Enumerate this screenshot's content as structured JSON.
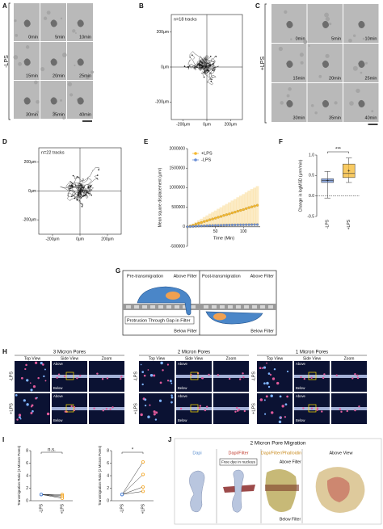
{
  "chart_data": [
    {
      "type": "tracks",
      "annotation": "n=18 tracks",
      "xlim": [
        -300,
        300
      ],
      "xticks": [
        {
          "value": -200,
          "label": "-200μm"
        },
        {
          "value": 0,
          "label": "0μm"
        },
        {
          "value": 200,
          "label": "200μm"
        }
      ],
      "ylim": [
        -300,
        300
      ],
      "yticks": [
        {
          "value": 200,
          "label": "200μm"
        },
        {
          "value": 0,
          "label": "0μm"
        },
        {
          "value": -200,
          "label": "-200μm"
        }
      ]
    },
    {
      "type": "tracks",
      "annotation": "n=22 tracks",
      "xlim": [
        -300,
        300
      ],
      "xticks": [
        {
          "value": -200,
          "label": "-200μm"
        },
        {
          "value": 0,
          "label": "0μm"
        },
        {
          "value": 200,
          "label": "200μm"
        }
      ],
      "ylim": [
        -300,
        300
      ],
      "yticks": [
        {
          "value": 200,
          "label": "200μm"
        },
        {
          "value": 0,
          "label": "0μm"
        },
        {
          "value": -200,
          "label": "-200μm"
        }
      ]
    },
    {
      "type": "line",
      "xlabel": "Time (Min)",
      "ylabel": "Mean square displacement (μm²)",
      "legend": "top-left",
      "x": [
        0,
        5,
        10,
        15,
        20,
        25,
        30,
        35,
        40,
        45,
        50,
        55,
        60,
        65,
        70,
        75,
        80,
        85,
        90,
        95,
        100,
        105,
        110,
        115,
        120,
        125
      ],
      "series": [
        {
          "name": "+LPS",
          "color": "#f5b82e",
          "values": [
            0,
            20000,
            40000,
            65000,
            90000,
            110000,
            135000,
            155000,
            180000,
            200000,
            220000,
            245000,
            265000,
            290000,
            310000,
            330000,
            355000,
            375000,
            400000,
            420000,
            440000,
            465000,
            490000,
            510000,
            530000,
            550000
          ],
          "errors": [
            0,
            20000,
            35000,
            55000,
            75000,
            95000,
            115000,
            135000,
            155000,
            175000,
            195000,
            215000,
            235000,
            255000,
            275000,
            295000,
            315000,
            335000,
            355000,
            375000,
            395000,
            415000,
            435000,
            455000,
            470000,
            490000
          ]
        },
        {
          "name": "-LPS",
          "color": "#6b8fd6",
          "values": [
            0,
            5000,
            10000,
            14000,
            18000,
            22000,
            25000,
            28000,
            31000,
            34000,
            36000,
            38000,
            40000,
            42000,
            44000,
            46000,
            47000,
            48000,
            49000,
            50000,
            51000,
            52000,
            53000,
            54000,
            55000,
            56000
          ]
        }
      ],
      "xlim": [
        0,
        130
      ],
      "xticks": [
        50,
        100
      ],
      "ylim": [
        -500000,
        2000000
      ],
      "yticks": [
        2000000,
        1500000,
        1000000,
        500000,
        0,
        -500000
      ]
    },
    {
      "type": "box",
      "ylabel": "Change in logMSD (μm²/min)",
      "annotation": "***",
      "categories": [
        "-LPS",
        "+LPS"
      ],
      "colors": [
        "#6b8fd6",
        "#f5b82e"
      ],
      "boxes": [
        {
          "low": -0.05,
          "q1": 0.33,
          "median": 0.38,
          "q3": 0.42,
          "high": 0.6,
          "mean": 0.38
        },
        {
          "low": 0.33,
          "q1": 0.45,
          "median": 0.55,
          "q3": 0.78,
          "high": 0.93,
          "mean": 0.62
        }
      ],
      "hline": 0,
      "ylim": [
        -0.5,
        1.0
      ],
      "yticks": [
        {
          "value": 1.0,
          "label": "1.0"
        },
        {
          "value": 0.5,
          "label": "0.5"
        },
        {
          "value": 0.0,
          "label": "0.0"
        },
        {
          "value": -0.5,
          "label": "-0.5"
        }
      ]
    },
    {
      "type": "paired",
      "ylabel": "Transmigration Ratio (3 Micron Pores)",
      "annotation": "n.s.",
      "categories": [
        "-LPS",
        "+LPS"
      ],
      "colors": [
        "#4a7fd4",
        "#f5a623"
      ],
      "pairs": [
        [
          1,
          1
        ],
        [
          1,
          0.8
        ],
        [
          1,
          0.6
        ],
        [
          1,
          0.4
        ]
      ],
      "ylim": [
        0,
        8
      ],
      "yticks": [
        0,
        2,
        4,
        6,
        8
      ]
    },
    {
      "type": "paired",
      "ylabel": "Transmigration Ratio (2 Micron Pores)",
      "annotation": "*",
      "categories": [
        "-LPS",
        "+LPS"
      ],
      "colors": [
        "#4a7fd4",
        "#f5a623"
      ],
      "pairs": [
        [
          1,
          6.2
        ],
        [
          1,
          4.2
        ],
        [
          1,
          2.2
        ],
        [
          1,
          1.5
        ]
      ],
      "ylim": [
        0,
        8
      ],
      "yticks": [
        0,
        2,
        4,
        6,
        8
      ]
    }
  ],
  "figure": {
    "letters": [
      "A",
      "B",
      "C",
      "D",
      "E",
      "F",
      "G",
      "H",
      "I",
      "J"
    ],
    "A": {
      "label": "-LPS",
      "times": [
        "0min",
        "5min",
        "10min",
        "15min",
        "20min",
        "25min",
        "30min",
        "35min",
        "40min"
      ]
    },
    "C": {
      "label": "+LPS",
      "times": [
        "0min",
        "5min",
        "10min",
        "15min",
        "20min",
        "25min",
        "30min",
        "35min",
        "40min"
      ]
    },
    "G": {
      "left": {
        "title": "Pre-transmigration",
        "above": "Above Filter",
        "callout": "Protrusion Through Gap in Filter",
        "below": "Below Filter"
      },
      "right": {
        "title": "Post-transmigration",
        "above": "Above Filter",
        "below": "Below Filter"
      }
    },
    "H": {
      "groups": [
        {
          "title": "3 Micron Pores",
          "views": [
            "Top View",
            "Side View",
            "Zoom"
          ],
          "rows": [
            "-LPS",
            "+LPS"
          ],
          "above": "Above",
          "below": "Below"
        },
        {
          "title": "2 Micron Pores",
          "views": [
            "Top View",
            "Side View",
            "Zoom"
          ],
          "rows": [
            "-LPS",
            "+LPS"
          ],
          "above": "Above",
          "below": "Below"
        },
        {
          "title": "1 Micron Pores",
          "views": [
            "Top View",
            "Side View",
            "Zoom"
          ],
          "rows": [
            "-LPS",
            "+LPS"
          ],
          "above": "Above",
          "below": "Below"
        }
      ]
    },
    "J": {
      "title": "2 Micron Pore Migration",
      "columns": [
        "Dapi",
        "Dapi/Filter",
        "Dapi/Filter/Phalloidin",
        "Above View"
      ],
      "note": "Free dye in nucleus",
      "above": "Above Filter",
      "below": "Below Filter"
    }
  }
}
